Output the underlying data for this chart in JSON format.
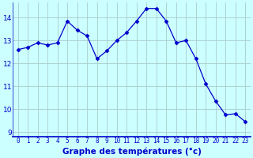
{
  "x": [
    0,
    1,
    2,
    3,
    4,
    5,
    6,
    7,
    8,
    9,
    10,
    11,
    12,
    13,
    14,
    15,
    16,
    17,
    18,
    19,
    20,
    21,
    22,
    23
  ],
  "y": [
    12.6,
    12.7,
    12.9,
    12.8,
    12.9,
    13.85,
    13.45,
    13.2,
    12.2,
    12.55,
    13.0,
    13.35,
    13.85,
    14.4,
    14.4,
    13.85,
    12.9,
    13.0,
    12.2,
    11.1,
    10.35,
    9.75,
    9.8,
    9.45
  ],
  "line_color": "#0000cc",
  "marker": "D",
  "marker_size": 2.5,
  "bg_color": "#ccffff",
  "grid_color": "#aacccc",
  "xlabel": "Graphe des températures (°c)",
  "xlabel_color": "#0000cc",
  "ylabel_ticks": [
    9,
    10,
    11,
    12,
    13,
    14
  ],
  "xlim": [
    -0.5,
    23.5
  ],
  "ylim": [
    8.8,
    14.65
  ],
  "xtick_labels": [
    "0",
    "1",
    "2",
    "3",
    "4",
    "5",
    "6",
    "7",
    "8",
    "9",
    "10",
    "11",
    "12",
    "13",
    "14",
    "15",
    "16",
    "17",
    "18",
    "19",
    "20",
    "21",
    "22",
    "23"
  ],
  "spine_color": "#0000cc",
  "axis_linewidth": 1.2,
  "tick_fontsize": 5.5,
  "ytick_fontsize": 6.5,
  "xlabel_fontsize": 7.5
}
